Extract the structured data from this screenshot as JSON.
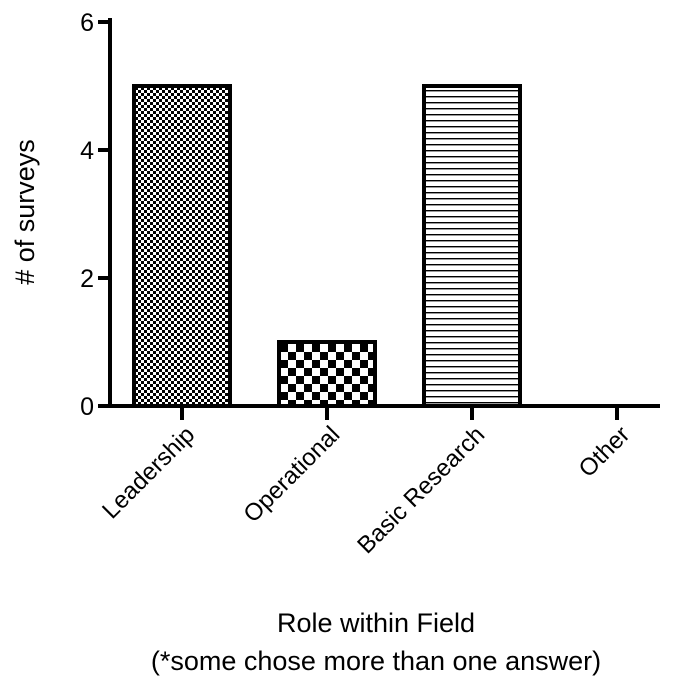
{
  "chart_data": {
    "type": "bar",
    "categories": [
      "Leadership",
      "Operational",
      "Basic Research",
      "Other"
    ],
    "values": [
      5,
      1,
      5,
      0
    ],
    "xlabel": "Role within Field",
    "xlabel_note": "(*some chose more than one answer)",
    "ylabel": "# of surveys",
    "ylim": [
      0,
      6
    ],
    "yticks": [
      "0",
      "2",
      "4",
      "6"
    ],
    "grid": false,
    "legend": "none",
    "patterns": [
      "fine-checker",
      "coarse-checker",
      "horizontal-lines",
      "none"
    ],
    "colors": {
      "bar_fill": "#ffffff",
      "ink": "#000000"
    }
  }
}
